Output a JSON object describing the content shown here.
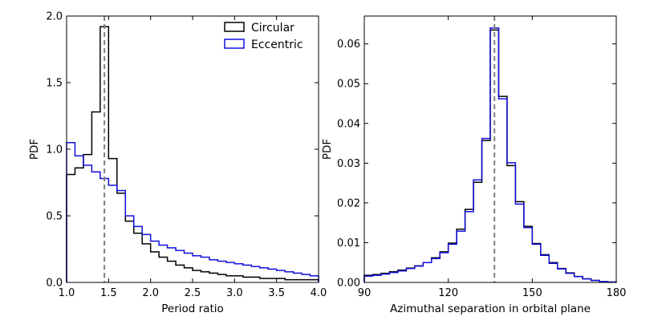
{
  "chart_data": [
    {
      "type": "step",
      "panel": "left",
      "xlabel": "Period ratio",
      "ylabel": "PDF",
      "xlim": [
        1.0,
        4.0
      ],
      "ylim": [
        0.0,
        2.0
      ],
      "xticks": [
        1.0,
        1.5,
        2.0,
        2.5,
        3.0,
        3.5,
        4.0
      ],
      "xtick_labels": [
        "1.0",
        "1.5",
        "2.0",
        "2.5",
        "3.0",
        "3.5",
        "4.0"
      ],
      "yticks": [
        0.0,
        0.5,
        1.0,
        1.5,
        2.0
      ],
      "ytick_labels": [
        "0.0",
        "0.5",
        "1.0",
        "1.5",
        "2.0"
      ],
      "bin_edges": [
        1.0,
        1.1,
        1.2,
        1.3,
        1.4,
        1.5,
        1.6,
        1.7,
        1.8,
        1.9,
        2.0,
        2.1,
        2.2,
        2.3,
        2.4,
        2.5,
        2.6,
        2.7,
        2.8,
        2.9,
        3.0,
        3.1,
        3.2,
        3.3,
        3.4,
        3.5,
        3.6,
        3.7,
        3.8,
        3.9,
        4.0
      ],
      "vline": 1.45,
      "legend": {
        "position": "top-right"
      },
      "series": [
        {
          "name": "Circular",
          "color": "#000000",
          "values": [
            0.81,
            0.86,
            0.96,
            1.28,
            1.92,
            0.93,
            0.67,
            0.46,
            0.37,
            0.29,
            0.23,
            0.19,
            0.16,
            0.13,
            0.11,
            0.09,
            0.08,
            0.07,
            0.06,
            0.05,
            0.05,
            0.04,
            0.04,
            0.03,
            0.03,
            0.03,
            0.02,
            0.02,
            0.02,
            0.02
          ]
        },
        {
          "name": "Eccentric",
          "color": "#1010dd",
          "values": [
            1.05,
            0.95,
            0.88,
            0.83,
            0.78,
            0.73,
            0.69,
            0.5,
            0.42,
            0.36,
            0.31,
            0.28,
            0.26,
            0.24,
            0.22,
            0.2,
            0.19,
            0.17,
            0.16,
            0.15,
            0.14,
            0.13,
            0.12,
            0.11,
            0.1,
            0.09,
            0.08,
            0.07,
            0.06,
            0.05
          ]
        }
      ]
    },
    {
      "type": "step",
      "panel": "right",
      "xlabel": "Azimuthal separation in orbital plane",
      "ylabel": "PDF",
      "xlim": [
        90,
        180
      ],
      "ylim": [
        0.0,
        0.067
      ],
      "xticks": [
        90,
        120,
        150,
        180
      ],
      "xtick_labels": [
        "90",
        "120",
        "150",
        "180"
      ],
      "yticks": [
        0.0,
        0.01,
        0.02,
        0.03,
        0.04,
        0.05,
        0.06
      ],
      "ytick_labels": [
        "0.00",
        "0.01",
        "0.02",
        "0.03",
        "0.04",
        "0.05",
        "0.06"
      ],
      "bin_edges": [
        90,
        93,
        96,
        99,
        102,
        105,
        108,
        111,
        114,
        117,
        120,
        123,
        126,
        129,
        132,
        135,
        138,
        141,
        144,
        147,
        150,
        153,
        156,
        159,
        162,
        165,
        168,
        171,
        174,
        177,
        180
      ],
      "vline": 136.5,
      "series": [
        {
          "name": "Circular",
          "color": "#000000",
          "values": [
            0.0018,
            0.002,
            0.0023,
            0.0027,
            0.0031,
            0.0036,
            0.0042,
            0.005,
            0.0062,
            0.0077,
            0.0099,
            0.0134,
            0.0184,
            0.0252,
            0.0357,
            0.0635,
            0.0468,
            0.0294,
            0.0203,
            0.0141,
            0.0098,
            0.007,
            0.005,
            0.0035,
            0.0024,
            0.0015,
            0.0009,
            0.0005,
            0.0002,
            0.0001
          ]
        },
        {
          "name": "Eccentric",
          "color": "#1010dd",
          "values": [
            0.0016,
            0.0018,
            0.0021,
            0.0025,
            0.0029,
            0.0035,
            0.0041,
            0.005,
            0.006,
            0.0075,
            0.0096,
            0.0129,
            0.0178,
            0.0258,
            0.0362,
            0.064,
            0.0462,
            0.0301,
            0.0197,
            0.0138,
            0.0096,
            0.0068,
            0.0048,
            0.0034,
            0.0023,
            0.0015,
            0.0009,
            0.0005,
            0.0002,
            0.0001
          ]
        }
      ]
    }
  ]
}
